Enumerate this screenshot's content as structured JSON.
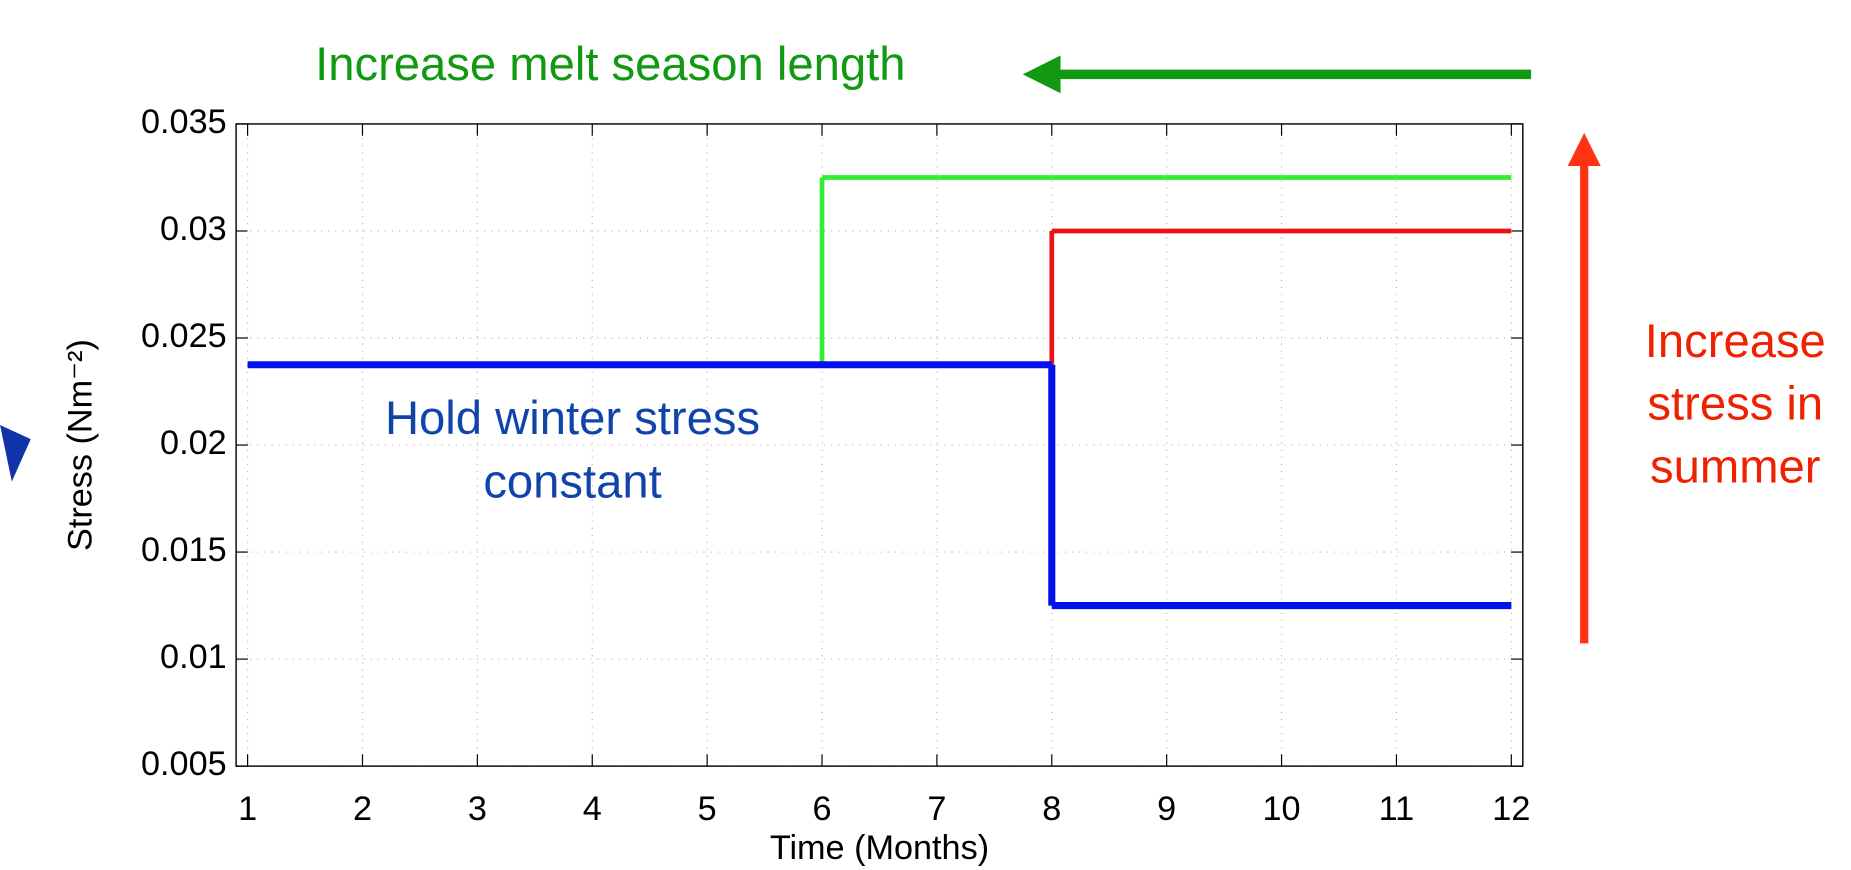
{
  "chart_data": {
    "type": "line",
    "step": "post",
    "xlabel": "Time (Months)",
    "ylabel": "Stress (Nm⁻²)",
    "x": [
      1,
      6,
      8,
      12
    ],
    "series": [
      {
        "name": "Increase melt season length",
        "color": "#33ee33",
        "values": [
          0.02375,
          0.0325,
          0.0325,
          0.0325
        ]
      },
      {
        "name": "Increase stress in summer",
        "color": "#ee1111",
        "values": [
          0.02375,
          0.02375,
          0.03,
          0.03
        ]
      },
      {
        "name": "Hold winter stress constant",
        "color": "#0011ee",
        "values": [
          0.02375,
          0.02375,
          0.0125,
          0.0125
        ]
      }
    ],
    "xlim": [
      0.9,
      12.1
    ],
    "ylim": [
      0.005,
      0.035
    ],
    "xticks": [
      1,
      2,
      3,
      4,
      5,
      6,
      7,
      8,
      9,
      10,
      11,
      12
    ],
    "yticks": [
      0.005,
      0.01,
      0.015,
      0.02,
      0.025,
      0.03,
      0.035
    ],
    "grid": true,
    "annotations": [
      {
        "lines": [
          "Increase melt season length"
        ],
        "color": "#119911"
      },
      {
        "lines": [
          "Hold winter stress",
          "constant"
        ],
        "color": "#1144aa"
      },
      {
        "lines": [
          "Increase",
          "stress in",
          "summer"
        ],
        "color": "#ee2200"
      }
    ]
  }
}
